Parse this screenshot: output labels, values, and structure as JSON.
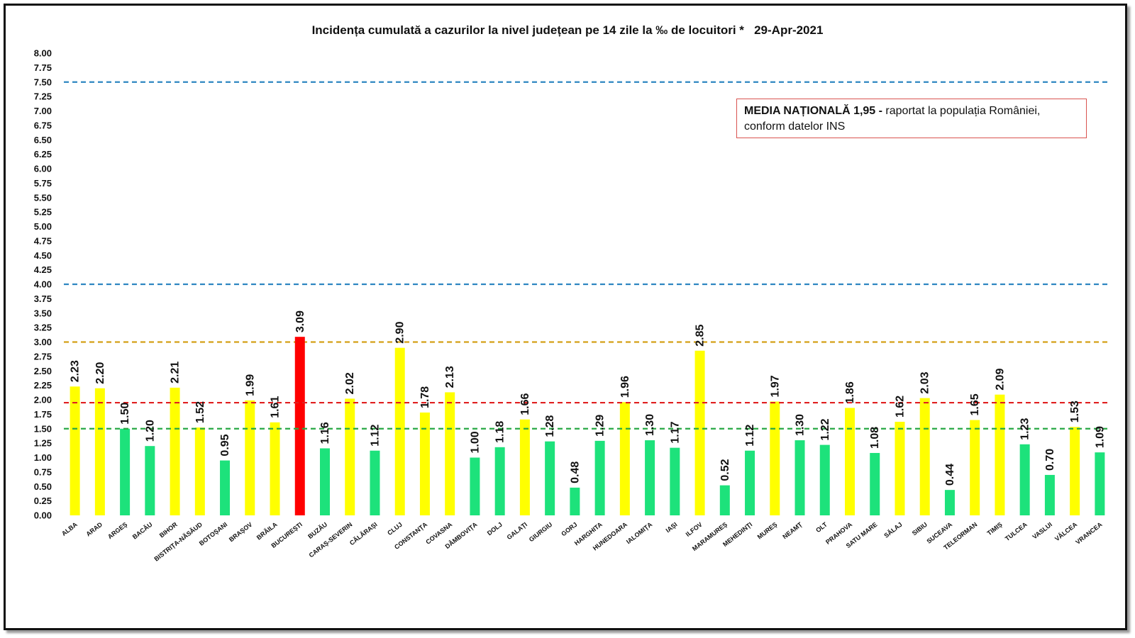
{
  "chart_data": {
    "type": "bar",
    "title": "Incidența cumulată a cazurilor la nivel județean pe 14 zile la ‰ de locuitori *   29-Apr-2021",
    "xlabel": "",
    "ylabel": "",
    "ylim": [
      0,
      8
    ],
    "y_ticks": [
      "0.00",
      "0.25",
      "0.50",
      "0.75",
      "1.00",
      "1.25",
      "1.50",
      "1.75",
      "2.00",
      "2.25",
      "2.50",
      "2.75",
      "3.00",
      "3.25",
      "3.50",
      "3.75",
      "4.00",
      "4.25",
      "4.50",
      "4.75",
      "5.00",
      "5.25",
      "5.50",
      "5.75",
      "6.00",
      "6.25",
      "6.50",
      "6.75",
      "7.00",
      "7.25",
      "7.50",
      "7.75",
      "8.00"
    ],
    "grid": false,
    "categories": [
      "ALBA",
      "ARAD",
      "ARGEȘ",
      "BACĂU",
      "BIHOR",
      "BISTRIȚA-NĂSĂUD",
      "BOTOȘANI",
      "BRAȘOV",
      "BRĂILA",
      "BUCUREȘTI",
      "BUZĂU",
      "CARAȘ-SEVERIN",
      "CĂLĂRAȘI",
      "CLUJ",
      "CONSTANȚA",
      "COVASNA",
      "DÂMBOVIȚA",
      "DOLJ",
      "GALAȚI",
      "GIURGIU",
      "GORJ",
      "HARGHITA",
      "HUNEDOARA",
      "IALOMIȚA",
      "IAȘI",
      "ILFOV",
      "MARAMUREȘ",
      "MEHEDINȚI",
      "MUREȘ",
      "NEAMȚ",
      "OLT",
      "PRAHOVA",
      "SATU MARE",
      "SĂLAJ",
      "SIBIU",
      "SUCEAVA",
      "TELEORMAN",
      "TIMIȘ",
      "TULCEA",
      "VASLUI",
      "VÂLCEA",
      "VRANCEA"
    ],
    "values": [
      2.23,
      2.2,
      1.5,
      1.2,
      2.21,
      1.52,
      0.95,
      1.99,
      1.61,
      3.09,
      1.16,
      2.02,
      1.12,
      2.9,
      1.78,
      2.13,
      1.0,
      1.18,
      1.66,
      1.28,
      0.48,
      1.29,
      1.96,
      1.3,
      1.17,
      2.85,
      0.52,
      1.12,
      1.97,
      1.3,
      1.22,
      1.86,
      1.08,
      1.62,
      2.03,
      0.44,
      1.65,
      2.09,
      1.23,
      0.7,
      1.53,
      1.09
    ],
    "value_labels": [
      "2.23",
      "2.20",
      "1.50",
      "1.20",
      "2.21",
      "1.52",
      "0.95",
      "1.99",
      "1.61",
      "3.09",
      "1.16",
      "2.02",
      "1.12",
      "2.90",
      "1.78",
      "2.13",
      "1.00",
      "1.18",
      "1.66",
      "1.28",
      "0.48",
      "1.29",
      "1.96",
      "1.30",
      "1.17",
      "2.85",
      "0.52",
      "1.12",
      "1.97",
      "1.30",
      "1.22",
      "1.86",
      "1.08",
      "1.62",
      "2.03",
      "0.44",
      "1.65",
      "2.09",
      "1.23",
      "0.70",
      "1.53",
      "1.09"
    ],
    "bar_colors": {
      "above_1_5": "#ffff00",
      "up_to_1_5": "#1de27b",
      "above_3": "#ff0000"
    },
    "reference_lines": [
      {
        "value": 7.5,
        "color": "#2e86c1",
        "style": "dashed"
      },
      {
        "value": 4.0,
        "color": "#2e86c1",
        "style": "dashed"
      },
      {
        "value": 3.0,
        "color": "#d4a017",
        "style": "dashed"
      },
      {
        "value": 1.95,
        "color": "#e02020",
        "style": "dashed"
      },
      {
        "value": 1.5,
        "color": "#27a844",
        "style": "dashed"
      }
    ]
  },
  "note": {
    "bold": "MEDIA NAȚIONALĂ  1,95 -",
    "line1": " raportat la populația României,",
    "line2": "conform datelor INS"
  }
}
